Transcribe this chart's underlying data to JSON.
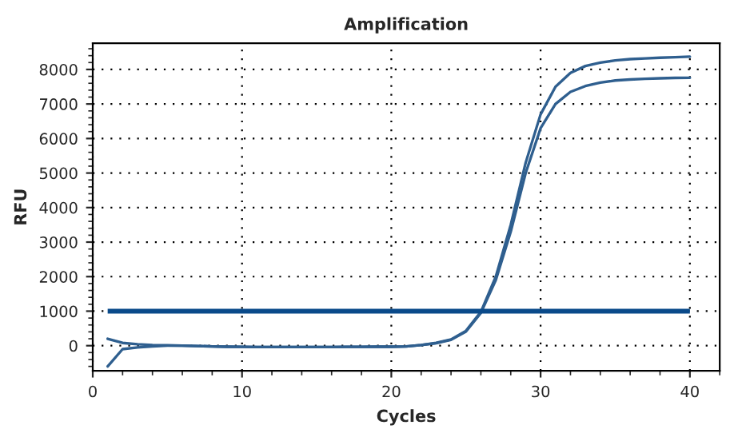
{
  "chart_data": {
    "type": "line",
    "title": "Amplification",
    "xlabel": "Cycles",
    "ylabel": "RFU",
    "x": [
      1,
      2,
      3,
      4,
      5,
      6,
      7,
      8,
      9,
      10,
      11,
      12,
      13,
      14,
      15,
      16,
      17,
      18,
      19,
      20,
      21,
      22,
      23,
      24,
      25,
      26,
      27,
      28,
      29,
      30,
      31,
      32,
      33,
      34,
      35,
      36,
      37,
      38,
      39,
      40
    ],
    "series": [
      {
        "color": "#2f5f8f",
        "values": [
          200,
          80,
          40,
          20,
          10,
          0,
          -10,
          -20,
          -30,
          -35,
          -40,
          -40,
          -40,
          -40,
          -40,
          -40,
          -35,
          -35,
          -30,
          -30,
          -20,
          20,
          80,
          180,
          430,
          980,
          2000,
          3500,
          5300,
          6700,
          7500,
          7900,
          8100,
          8200,
          8260,
          8300,
          8320,
          8340,
          8355,
          8370
        ]
      },
      {
        "color": "#2f5f8f",
        "values": [
          -600,
          -100,
          -50,
          -20,
          0,
          0,
          -10,
          -20,
          -30,
          -35,
          -40,
          -40,
          -40,
          -40,
          -40,
          -40,
          -35,
          -35,
          -30,
          -30,
          -20,
          20,
          70,
          170,
          410,
          950,
          1900,
          3300,
          5000,
          6300,
          7000,
          7350,
          7520,
          7620,
          7680,
          7710,
          7730,
          7745,
          7755,
          7760
        ]
      }
    ],
    "ref_lines": [
      {
        "axis": "y",
        "value": 1000,
        "color": "#0a4a8a",
        "line_style": "solid"
      }
    ],
    "xlim": [
      0,
      42
    ],
    "xticks": [
      0,
      10,
      20,
      30,
      40
    ],
    "ylim": [
      -730,
      8760
    ],
    "yticks": [
      0,
      1000,
      2000,
      3000,
      4000,
      5000,
      6000,
      7000,
      8000
    ],
    "grid": true,
    "marker": "none",
    "line_style": "solid",
    "legend": false
  }
}
